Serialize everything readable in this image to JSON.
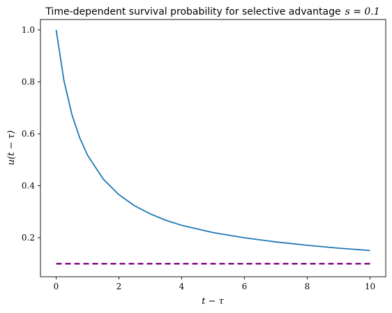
{
  "chart_data": {
    "type": "line",
    "title": "Time-dependent survival probability for selective advantage",
    "title_math": "s = 0.1",
    "xlabel": "t − τ",
    "ylabel": "u(t − τ)",
    "xlim": [
      -0.5,
      10.5
    ],
    "ylim": [
      0.05,
      1.04
    ],
    "x_ticks": [
      0,
      2,
      4,
      6,
      8,
      10
    ],
    "x_tick_labels": [
      "0",
      "2",
      "4",
      "6",
      "8",
      "10"
    ],
    "y_ticks": [
      0.2,
      0.4,
      0.6,
      0.8,
      1.0
    ],
    "y_tick_labels": [
      "0.2",
      "0.4",
      "0.6",
      "0.8",
      "1.0"
    ],
    "grid": false,
    "series": [
      {
        "color": "#1f77b4",
        "style": "solid",
        "x": [
          0,
          0.25,
          0.5,
          0.75,
          1,
          1.5,
          2,
          2.5,
          3,
          3.5,
          4,
          5,
          6,
          7,
          8,
          9,
          10
        ],
        "y": [
          1.0,
          0.804,
          0.675,
          0.585,
          0.518,
          0.426,
          0.366,
          0.323,
          0.292,
          0.267,
          0.248,
          0.22,
          0.2,
          0.184,
          0.171,
          0.16,
          0.151
        ]
      },
      {
        "color": "#800080",
        "style": "dashed",
        "x": [
          0,
          10
        ],
        "y": [
          0.1,
          0.1
        ]
      }
    ]
  }
}
